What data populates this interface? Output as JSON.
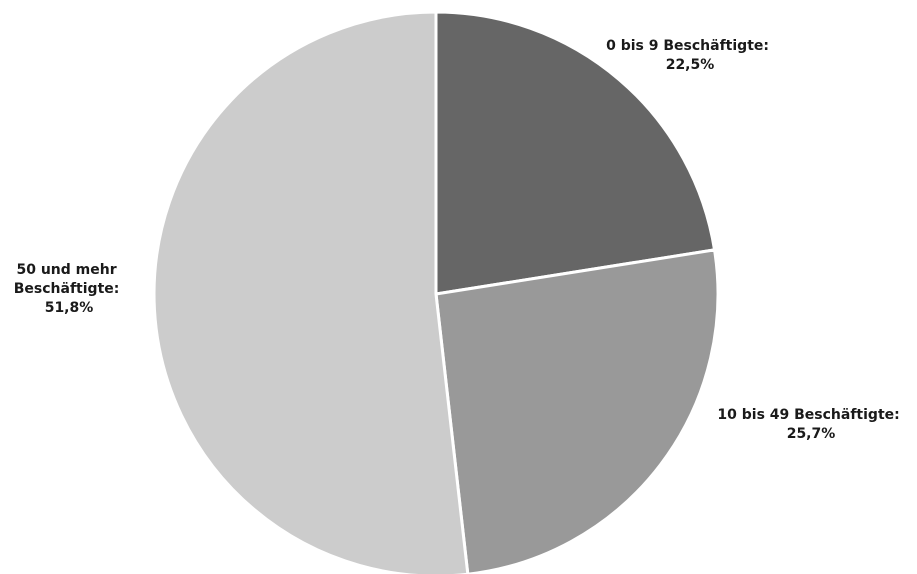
{
  "chart_data": {
    "type": "pie",
    "title": "",
    "start_angle_deg": 0,
    "direction": "clockwise",
    "legend": "none",
    "slices": [
      {
        "name_lines": [
          "0 bis 9 Beschäftigte:"
        ],
        "value_label": "22,5%",
        "value": 22.5,
        "color": "#666666"
      },
      {
        "name_lines": [
          "10 bis 49 Beschäftigte:"
        ],
        "value_label": "25,7%",
        "value": 25.7,
        "color": "#999999"
      },
      {
        "name_lines": [
          "50 und mehr",
          "Beschäftigte:"
        ],
        "value_label": "51,8%",
        "value": 51.8,
        "color": "#cccccc"
      }
    ]
  }
}
